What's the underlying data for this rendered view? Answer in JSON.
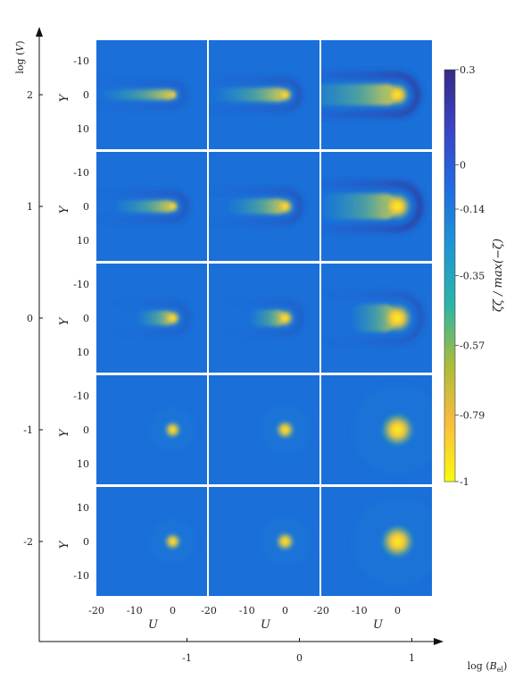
{
  "chart_data": {
    "type": "heatmap",
    "grid": {
      "rows": 5,
      "cols": 3
    },
    "outer_axes": {
      "ylabel_prefix": "log",
      "ylabel_var": "V",
      "xlabel_prefix": "log",
      "xlabel_var": "B",
      "xlabel_sub": "el",
      "row_values": [
        "2",
        "1",
        "0",
        "-1",
        "-2"
      ],
      "col_values": [
        "-1",
        "0",
        "1"
      ]
    },
    "panel_axes": {
      "ylabel": "Y",
      "xlabel": "U",
      "yticks_upper_rows": [
        "-10",
        "0",
        "10"
      ],
      "yticks_bottom_row": [
        "10",
        "0",
        "-10"
      ],
      "xticks": [
        "-20",
        "-10",
        "0"
      ],
      "xlim": [
        -20,
        9
      ],
      "ylim": [
        -16,
        16
      ]
    },
    "colorbar": {
      "label_pre": "ζ / max(−",
      "label_var": "ζ",
      "label_post": ")",
      "ticks": [
        "0.3",
        "0",
        "-0.14",
        "-0.35",
        "-0.57",
        "-0.79",
        "-1"
      ],
      "range": [
        -1,
        0.3
      ],
      "colormap": [
        "#f9fb0e",
        "#fbbc3e",
        "#a8bd3a",
        "#2ab6a6",
        "#1e96d4",
        "#1f6ce3",
        "#3a44c6",
        "#352a87"
      ]
    },
    "panels": [
      {
        "row": "2",
        "col": "-1",
        "peak_u": 0,
        "radius": 1.2,
        "tail": "long",
        "trough": "weak"
      },
      {
        "row": "2",
        "col": "0",
        "peak_u": 0,
        "radius": 1.6,
        "tail": "long",
        "trough": "medium"
      },
      {
        "row": "2",
        "col": "1",
        "peak_u": 0,
        "radius": 2.5,
        "tail": "long",
        "trough": "strong"
      },
      {
        "row": "1",
        "col": "-1",
        "peak_u": 0,
        "radius": 1.4,
        "tail": "medium",
        "trough": "medium"
      },
      {
        "row": "1",
        "col": "0",
        "peak_u": 0,
        "radius": 1.8,
        "tail": "medium",
        "trough": "medium"
      },
      {
        "row": "1",
        "col": "1",
        "peak_u": 0,
        "radius": 3.0,
        "tail": "medium",
        "trough": "strong"
      },
      {
        "row": "0",
        "col": "-1",
        "peak_u": 0,
        "radius": 1.7,
        "tail": "short",
        "trough": "weak"
      },
      {
        "row": "0",
        "col": "0",
        "peak_u": 0,
        "radius": 1.9,
        "tail": "short",
        "trough": "weak"
      },
      {
        "row": "0",
        "col": "1",
        "peak_u": 0,
        "radius": 3.2,
        "tail": "short",
        "trough": "medium"
      },
      {
        "row": "-1",
        "col": "-1",
        "peak_u": 0,
        "radius": 1.8,
        "tail": "none",
        "trough": "none"
      },
      {
        "row": "-1",
        "col": "0",
        "peak_u": 0,
        "radius": 2.0,
        "tail": "none",
        "trough": "none"
      },
      {
        "row": "-1",
        "col": "1",
        "peak_u": 0,
        "radius": 3.6,
        "tail": "none",
        "trough": "none"
      },
      {
        "row": "-2",
        "col": "-1",
        "peak_u": 0,
        "radius": 1.8,
        "tail": "none",
        "trough": "none"
      },
      {
        "row": "-2",
        "col": "0",
        "peak_u": 0,
        "radius": 2.0,
        "tail": "none",
        "trough": "none"
      },
      {
        "row": "-2",
        "col": "1",
        "peak_u": 0,
        "radius": 3.6,
        "tail": "none",
        "trough": "none"
      }
    ]
  }
}
